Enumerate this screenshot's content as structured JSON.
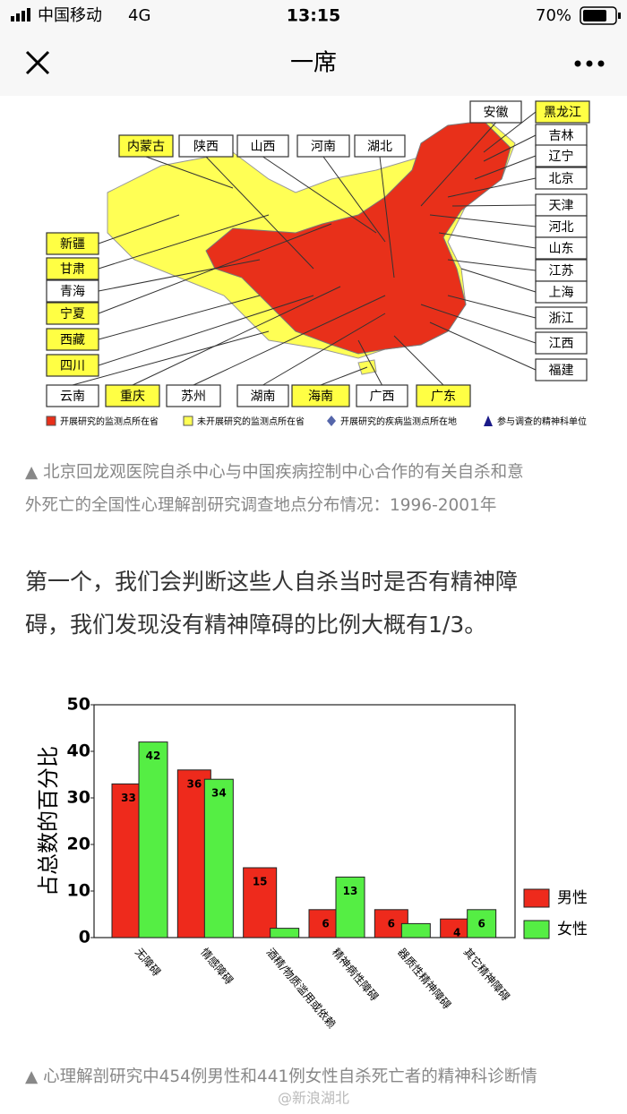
{
  "status_bar": {
    "carrier": "中国移动",
    "network": "4G",
    "time": "13:15",
    "battery": "70%"
  },
  "nav": {
    "title": "一席"
  },
  "map": {
    "provinces": [
      {
        "name": "安徽",
        "color": "#ffffff"
      },
      {
        "name": "黑龙江",
        "color": "#ffff44"
      },
      {
        "name": "内蒙古",
        "color": "#ffff44"
      },
      {
        "name": "陕西",
        "color": "#ffffff"
      },
      {
        "name": "山西",
        "color": "#ffffff"
      },
      {
        "name": "河南",
        "color": "#ffffff"
      },
      {
        "name": "湖北",
        "color": "#ffffff"
      },
      {
        "name": "吉林",
        "color": "#ffffff"
      },
      {
        "name": "辽宁",
        "color": "#ffffff"
      },
      {
        "name": "北京",
        "color": "#ffffff"
      },
      {
        "name": "天津",
        "color": "#ffffff"
      },
      {
        "name": "河北",
        "color": "#ffffff"
      },
      {
        "name": "山东",
        "color": "#ffffff"
      },
      {
        "name": "江苏",
        "color": "#ffffff"
      },
      {
        "name": "上海",
        "color": "#ffffff"
      },
      {
        "name": "浙江",
        "color": "#ffffff"
      },
      {
        "name": "江西",
        "color": "#ffffff"
      },
      {
        "name": "福建",
        "color": "#ffffff"
      },
      {
        "name": "新疆",
        "color": "#ffff44"
      },
      {
        "name": "甘肃",
        "color": "#ffff44"
      },
      {
        "name": "青海",
        "color": "#ffffff"
      },
      {
        "name": "宁夏",
        "color": "#ffff44"
      },
      {
        "name": "西藏",
        "color": "#ffff44"
      },
      {
        "name": "四川",
        "color": "#ffff44"
      },
      {
        "name": "云南",
        "color": "#ffffff"
      },
      {
        "name": "重庆",
        "color": "#ffff44"
      },
      {
        "name": "苏州",
        "color": "#ffffff"
      },
      {
        "name": "湖南",
        "color": "#ffffff"
      },
      {
        "name": "海南",
        "color": "#ffff44"
      },
      {
        "name": "广西",
        "color": "#ffffff"
      },
      {
        "name": "广东",
        "color": "#ffff44"
      }
    ],
    "legend": [
      "开展研究的监测点所在省",
      "未开展研究的监测点所在省",
      "开展研究的疾病监测点所在地",
      "参与调查的精神科单位"
    ]
  },
  "map_caption": [
    "▲ 北京回龙观医院自杀中心与中国疾病控制中心合作的有关自杀和意",
    "外死亡的全国性心理解剖研究调查地点分布情况：1996-2001年"
  ],
  "paragraph": [
    "第一个，我们会判断这些人自杀当时是否有精神障",
    "碍，我们发现没有精神障碍的比例大概有1/3。"
  ],
  "chart_data": {
    "type": "bar",
    "y_label": "占总数的百分比",
    "categories": [
      "无障碍",
      "情感障碍",
      "酒精/物质滥用或依赖",
      "精神病性障碍",
      "器质性精神障碍",
      "其它精神障碍"
    ],
    "series": [
      {
        "name": "男性",
        "color": "#ee2a1c",
        "values": [
          33,
          36,
          15,
          6,
          6,
          4
        ],
        "value_labels": [
          "33",
          "36",
          "15",
          "6",
          "6",
          "4"
        ]
      },
      {
        "name": "女性",
        "color": "#55ee44",
        "values": [
          42,
          34,
          2,
          13,
          3,
          6
        ],
        "value_labels": [
          "42",
          "34",
          null,
          "13",
          null,
          "6"
        ]
      }
    ],
    "ylim": [
      0,
      50
    ],
    "yticks": [
      0,
      10,
      20,
      30,
      40,
      50
    ]
  },
  "chart_caption": "▲ 心理解剖研究中454例男性和441例女性自杀死亡者的精神科诊断情",
  "watermark": "@新浪湖北"
}
